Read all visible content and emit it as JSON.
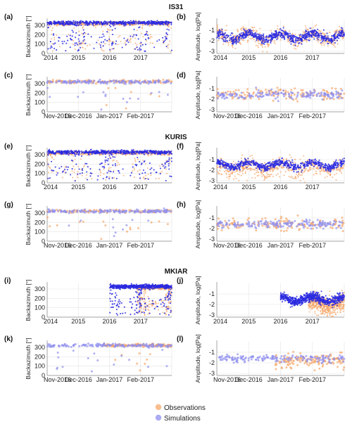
{
  "figure": {
    "stations": [
      {
        "name": "IS31",
        "panels": [
          "a",
          "b",
          "c",
          "d"
        ]
      },
      {
        "name": "KURIS",
        "panels": [
          "e",
          "f",
          "g",
          "h"
        ]
      },
      {
        "name": "MKIAR",
        "panels": [
          "i",
          "j",
          "k",
          "l"
        ]
      }
    ],
    "legend": [
      {
        "label": "Observations",
        "color": "#f5a76a"
      },
      {
        "label": "Simulations",
        "color": "#8f8ff0"
      }
    ]
  },
  "colors": {
    "observations": "#f5a76a",
    "simulations_dense": "#2a2ae0",
    "simulations_light": "#9090ee",
    "grid": "#e3e3e3",
    "axis": "#888888"
  },
  "chart_data": [
    {
      "panel": "(a)",
      "station": "IS31",
      "type": "scatter",
      "ylabel": "Backazimuth [°]",
      "xlim": [
        "2014-01",
        "2018-01"
      ],
      "ylim": [
        0,
        360
      ],
      "xticks": [
        "2014",
        "2015",
        "2016",
        "2017"
      ],
      "yticks": [
        0,
        100,
        200,
        300
      ],
      "series": [
        {
          "name": "Observations",
          "pattern": "seasonal band near 320° with winter scatter 100–250°"
        },
        {
          "name": "Simulations",
          "pattern": "dense band near 320° with winter clusters 100–250°"
        }
      ]
    },
    {
      "panel": "(b)",
      "station": "IS31",
      "type": "scatter",
      "ylabel": "Amplitude, log[Pa]",
      "xlim": [
        "2014-01",
        "2018-01"
      ],
      "ylim": [
        -3.2,
        0
      ],
      "xticks": [
        "2014",
        "2015",
        "2016",
        "2017"
      ],
      "yticks": [
        -1,
        -2,
        -3
      ],
      "series": [
        {
          "name": "Observations",
          "mean": -1.6,
          "seasonal_amplitude": 0.4,
          "spread": 0.5
        },
        {
          "name": "Simulations",
          "mean": -1.6,
          "seasonal_amplitude": 0.3,
          "spread": 0.3
        }
      ]
    },
    {
      "panel": "(c)",
      "station": "IS31",
      "type": "scatter",
      "ylabel": "Backazimuth [°]",
      "xlim": [
        "2016-11",
        "2017-03"
      ],
      "ylim": [
        0,
        360
      ],
      "xticks": [
        "Nov-2016",
        "Dec-2016",
        "Jan-2017",
        "Feb-2017"
      ],
      "yticks": [
        0,
        100,
        200,
        300
      ],
      "series": [
        {
          "name": "Observations",
          "pattern": "mostly 300–330°"
        },
        {
          "name": "Simulations",
          "pattern": "mostly 300–330° with a few points near 40–70°"
        }
      ]
    },
    {
      "panel": "(d)",
      "station": "IS31",
      "type": "scatter",
      "ylabel": "Amplitude, log[Pa]",
      "xlim": [
        "2016-11",
        "2017-03"
      ],
      "ylim": [
        -3.2,
        0
      ],
      "xticks": [
        "Nov-2016",
        "Dec-2016",
        "Jan-2017",
        "Feb-2017"
      ],
      "yticks": [
        -1,
        -2,
        -3
      ],
      "series": [
        {
          "name": "Observations",
          "mean": -1.5,
          "spread": 0.4
        },
        {
          "name": "Simulations",
          "mean": -1.6,
          "spread": 0.3
        }
      ]
    },
    {
      "panel": "(e)",
      "station": "KURIS",
      "type": "scatter",
      "ylabel": "Backazimuth [°]",
      "xlim": [
        "2014-01",
        "2018-01"
      ],
      "ylim": [
        0,
        360
      ],
      "xticks": [
        "2014",
        "2015",
        "2016",
        "2017"
      ],
      "yticks": [
        0,
        100,
        200,
        300
      ],
      "series": [
        {
          "name": "Observations",
          "pattern": "band near 320° and wide winter scatter 50–300°"
        },
        {
          "name": "Simulations",
          "pattern": "band near 330° and winter band near 200°"
        }
      ]
    },
    {
      "panel": "(f)",
      "station": "KURIS",
      "type": "scatter",
      "ylabel": "Amplitude, log[Pa]",
      "xlim": [
        "2014-01",
        "2018-01"
      ],
      "ylim": [
        -3.2,
        0
      ],
      "xticks": [
        "2014",
        "2015",
        "2016",
        "2017"
      ],
      "yticks": [
        -1,
        -2,
        -3
      ],
      "series": [
        {
          "name": "Observations",
          "mean": -1.8,
          "spread": 0.6
        },
        {
          "name": "Simulations",
          "mean": -1.5,
          "spread": 0.25
        }
      ]
    },
    {
      "panel": "(g)",
      "station": "KURIS",
      "type": "scatter",
      "ylabel": "Backazimuth [°]",
      "xlim": [
        "2016-11",
        "2017-03"
      ],
      "ylim": [
        0,
        360
      ],
      "xticks": [
        "Nov-2016",
        "Dec-2016",
        "Jan-2017",
        "Feb-2017"
      ],
      "yticks": [
        0,
        100,
        200,
        300
      ],
      "series": [
        {
          "name": "Observations",
          "pattern": "mostly 310–340° with scatter 50–250°"
        },
        {
          "name": "Simulations",
          "pattern": "mostly 320° with points near 60–100°"
        }
      ]
    },
    {
      "panel": "(h)",
      "station": "KURIS",
      "type": "scatter",
      "ylabel": "Amplitude, log[Pa]",
      "xlim": [
        "2016-11",
        "2017-03"
      ],
      "ylim": [
        -3.2,
        0
      ],
      "xticks": [
        "Nov-2016",
        "Dec-2016",
        "Jan-2017",
        "Feb-2017"
      ],
      "yticks": [
        -1,
        -2,
        -3
      ],
      "series": [
        {
          "name": "Observations",
          "mean": -1.6,
          "spread": 0.4
        },
        {
          "name": "Simulations",
          "mean": -1.6,
          "spread": 0.25
        }
      ]
    },
    {
      "panel": "(i)",
      "station": "MKIAR",
      "type": "scatter",
      "ylabel": "Backazimuth [°]",
      "xlim": [
        "2014-01",
        "2018-01"
      ],
      "ylim": [
        0,
        360
      ],
      "xticks": [
        "2014",
        "2015",
        "2016",
        "2017"
      ],
      "yticks": [
        0,
        100,
        200,
        300
      ],
      "series": [
        {
          "name": "Observations",
          "pattern": "from 2017 only, band near 320° with scatter 100–250°"
        },
        {
          "name": "Simulations",
          "pattern": "from 2016 only, band near 330° with scatter 0–300°"
        }
      ]
    },
    {
      "panel": "(j)",
      "station": "MKIAR",
      "type": "scatter",
      "ylabel": "Amplitude, log[Pa]",
      "xlim": [
        "2014-01",
        "2018-01"
      ],
      "ylim": [
        -3.2,
        0
      ],
      "xticks": [
        "2014",
        "2015",
        "2016",
        "2017"
      ],
      "yticks": [
        -1,
        -2,
        -3
      ],
      "series": [
        {
          "name": "Observations",
          "mean": -2.0,
          "spread": 0.6
        },
        {
          "name": "Simulations",
          "mean": -1.5,
          "spread": 0.3
        }
      ]
    },
    {
      "panel": "(k)",
      "station": "MKIAR",
      "type": "scatter",
      "ylabel": "Backazimuth [°]",
      "xlim": [
        "2016-11",
        "2017-03"
      ],
      "ylim": [
        0,
        360
      ],
      "xticks": [
        "Nov-2016",
        "Dec-2016",
        "Jan-2017",
        "Feb-2017"
      ],
      "yticks": [
        0,
        100,
        200,
        300
      ],
      "series": [
        {
          "name": "Observations",
          "pattern": "from Jan-2017, band near 320° with scatter 50–250°"
        },
        {
          "name": "Simulations",
          "pattern": "band near 330° with points 40–250°"
        }
      ]
    },
    {
      "panel": "(l)",
      "station": "MKIAR",
      "type": "scatter",
      "ylabel": "Amplitude, log[Pa]",
      "xlim": [
        "2016-11",
        "2017-03"
      ],
      "ylim": [
        -3.2,
        0
      ],
      "xticks": [
        "Nov-2016",
        "Dec-2016",
        "Jan-2017",
        "Feb-2017"
      ],
      "yticks": [
        -1,
        -2,
        -3
      ],
      "series": [
        {
          "name": "Observations",
          "mean": -1.8,
          "spread": 0.5
        },
        {
          "name": "Simulations",
          "mean": -1.6,
          "spread": 0.25
        }
      ]
    }
  ]
}
